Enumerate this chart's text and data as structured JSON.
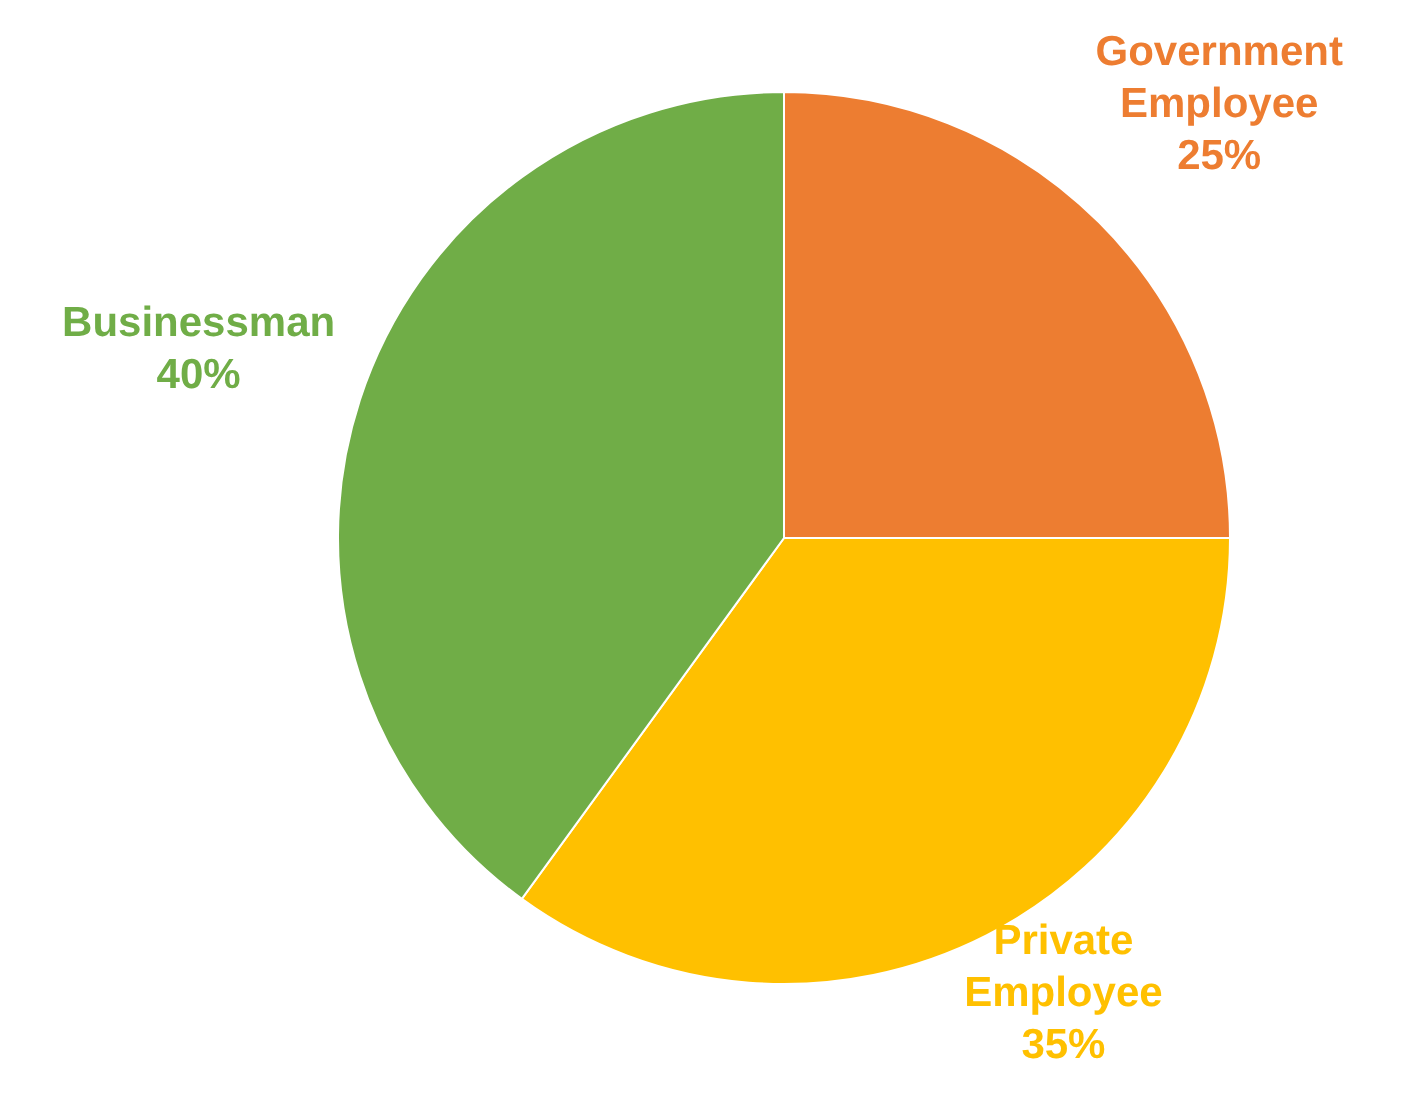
{
  "chart_data": {
    "type": "pie",
    "categories": [
      "Government Employee",
      "Private Employee",
      "Businessman"
    ],
    "values": [
      25,
      35,
      40
    ],
    "colors": [
      "#ed7d31",
      "#ffc000",
      "#70ad47"
    ],
    "value_labels": [
      "25%",
      "35%",
      "40%"
    ]
  }
}
